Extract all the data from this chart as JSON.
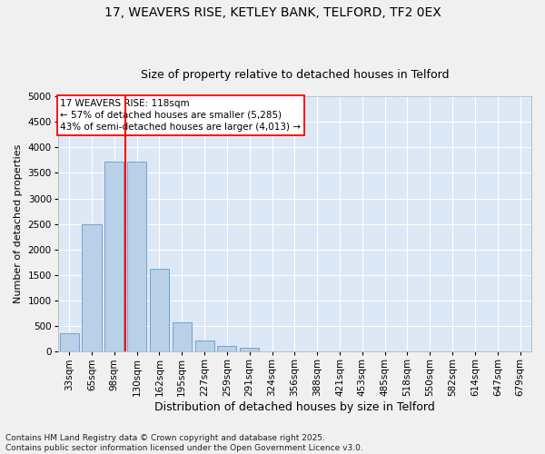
{
  "title_line1": "17, WEAVERS RISE, KETLEY BANK, TELFORD, TF2 0EX",
  "title_line2": "Size of property relative to detached houses in Telford",
  "xlabel": "Distribution of detached houses by size in Telford",
  "ylabel": "Number of detached properties",
  "bar_categories": [
    "33sqm",
    "65sqm",
    "98sqm",
    "130sqm",
    "162sqm",
    "195sqm",
    "227sqm",
    "259sqm",
    "291sqm",
    "324sqm",
    "356sqm",
    "388sqm",
    "421sqm",
    "453sqm",
    "485sqm",
    "518sqm",
    "550sqm",
    "582sqm",
    "614sqm",
    "647sqm",
    "679sqm"
  ],
  "bar_values": [
    370,
    2500,
    3720,
    3720,
    1620,
    570,
    220,
    110,
    70,
    0,
    0,
    0,
    0,
    0,
    0,
    0,
    0,
    0,
    0,
    0,
    0
  ],
  "bar_color": "#b8d0e8",
  "bar_edge_color": "#6699cc",
  "vline_color": "red",
  "vline_x": 2.5,
  "ylim_max": 5000,
  "yticks": [
    0,
    500,
    1000,
    1500,
    2000,
    2500,
    3000,
    3500,
    4000,
    4500,
    5000
  ],
  "annotation_text": "17 WEAVERS RISE: 118sqm\n← 57% of detached houses are smaller (5,285)\n43% of semi-detached houses are larger (4,013) →",
  "annotation_box_facecolor": "#ffffff",
  "annotation_box_edgecolor": "red",
  "footnote": "Contains HM Land Registry data © Crown copyright and database right 2025.\nContains public sector information licensed under the Open Government Licence v3.0.",
  "bg_color": "#dce8f5",
  "grid_color": "#ffffff",
  "fig_facecolor": "#f0f0f0",
  "title_fontsize": 10,
  "subtitle_fontsize": 9,
  "ylabel_fontsize": 8,
  "xlabel_fontsize": 9,
  "tick_fontsize": 7.5,
  "annotation_fontsize": 7.5,
  "footnote_fontsize": 6.5
}
